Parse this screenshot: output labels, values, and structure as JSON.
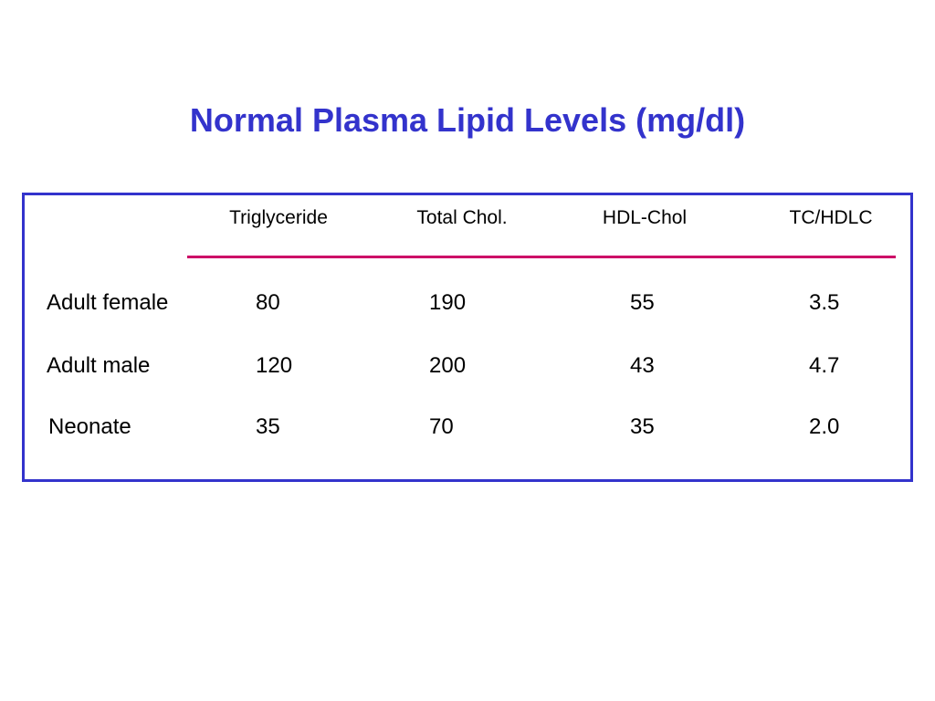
{
  "header": {
    "title": "Normal Plasma Lipid Levels (mg/dl)"
  },
  "table": {
    "columns": [
      "Triglyceride",
      "Total Chol.",
      "HDL-Chol",
      "TC/HDLC"
    ],
    "rows": [
      [
        "Adult female",
        "80",
        "190",
        "55",
        "3.5"
      ],
      [
        "Adult male",
        "120",
        "200",
        "43",
        "4.7"
      ],
      [
        "Neonate",
        "35",
        "70",
        "35",
        "2.0"
      ]
    ]
  }
}
